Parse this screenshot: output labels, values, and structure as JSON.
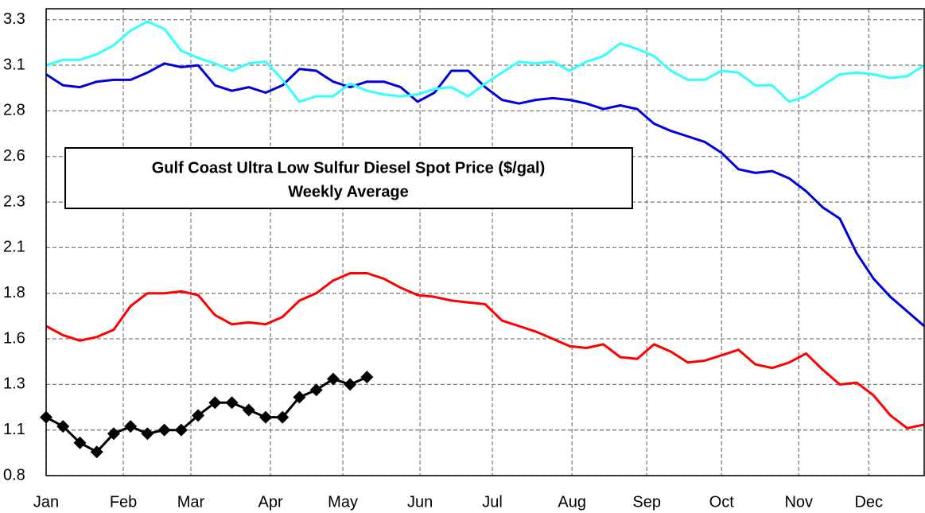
{
  "chart_data": {
    "type": "line",
    "title": "Gulf Coast Ultra Low Sulfur Diesel Spot Price ($/gal)",
    "subtitle": "Weekly Average",
    "x": [
      0,
      7,
      14,
      21,
      28,
      35,
      42,
      49,
      56,
      63,
      70,
      77,
      84,
      91,
      98,
      105,
      112,
      119,
      126,
      133,
      140,
      147,
      154,
      161,
      168,
      175,
      182,
      189,
      196,
      203,
      210,
      217,
      224,
      231,
      238,
      245,
      252,
      259,
      266,
      273,
      280,
      287,
      294,
      301,
      308,
      315,
      322,
      329,
      336,
      343,
      350,
      357,
      364
    ],
    "xlim": [
      0,
      364
    ],
    "xticks": [
      {
        "value": 0,
        "label": "Jan"
      },
      {
        "value": 32,
        "label": "Feb"
      },
      {
        "value": 60,
        "label": "Mar"
      },
      {
        "value": 93,
        "label": "Apr"
      },
      {
        "value": 123,
        "label": "May"
      },
      {
        "value": 155,
        "label": "Jun"
      },
      {
        "value": 185,
        "label": "Jul"
      },
      {
        "value": 218,
        "label": "Aug"
      },
      {
        "value": 249,
        "label": "Sep"
      },
      {
        "value": 280,
        "label": "Oct"
      },
      {
        "value": 312,
        "label": "Nov"
      },
      {
        "value": 341,
        "label": "Dec"
      }
    ],
    "ylim": [
      0.8,
      3.36
    ],
    "yticks": [
      0.8,
      {
        "value": 1.05,
        "label": "1.1"
      },
      1.3,
      {
        "value": 1.55,
        "label": "1.6"
      },
      1.8,
      {
        "value": 2.05,
        "label": "2.1"
      },
      2.3,
      {
        "value": 2.55,
        "label": "2.6"
      },
      2.8,
      {
        "value": 3.05,
        "label": "3.1"
      },
      3.3
    ],
    "grid": true,
    "series": [
      {
        "color": "#ff0000",
        "values": [
          1.62,
          1.57,
          1.54,
          1.56,
          1.6,
          1.73,
          1.8,
          1.8,
          1.81,
          1.79,
          1.68,
          1.63,
          1.64,
          1.63,
          1.67,
          1.76,
          1.8,
          1.87,
          1.91,
          1.91,
          1.88,
          1.83,
          1.79,
          1.78,
          1.76,
          1.75,
          1.74,
          1.65,
          1.62,
          1.59,
          1.55,
          1.51,
          1.5,
          1.52,
          1.45,
          1.44,
          1.52,
          1.48,
          1.42,
          1.43,
          1.46,
          1.49,
          1.41,
          1.39,
          1.42,
          1.47,
          1.38,
          1.3,
          1.31,
          1.24,
          1.13,
          1.06,
          1.08
        ]
      },
      {
        "color": "#0000dd",
        "values": [
          3.0,
          2.94,
          2.93,
          2.96,
          2.97,
          2.97,
          3.01,
          3.06,
          3.04,
          3.05,
          2.94,
          2.91,
          2.93,
          2.9,
          2.94,
          3.03,
          3.02,
          2.96,
          2.93,
          2.96,
          2.96,
          2.93,
          2.85,
          2.9,
          3.02,
          3.02,
          2.93,
          2.86,
          2.84,
          2.86,
          2.87,
          2.86,
          2.84,
          2.81,
          2.83,
          2.81,
          2.73,
          2.69,
          2.66,
          2.63,
          2.57,
          2.48,
          2.46,
          2.47,
          2.43,
          2.36,
          2.27,
          2.21,
          2.02,
          1.88,
          1.78,
          1.7,
          1.62
        ]
      },
      {
        "color": "#33ffff",
        "values": [
          3.05,
          3.08,
          3.08,
          3.11,
          3.16,
          3.24,
          3.29,
          3.25,
          3.13,
          3.09,
          3.06,
          3.02,
          3.06,
          3.07,
          2.97,
          2.85,
          2.88,
          2.88,
          2.95,
          2.91,
          2.89,
          2.88,
          2.89,
          2.92,
          2.93,
          2.88,
          2.95,
          3.01,
          3.07,
          3.06,
          3.07,
          3.02,
          3.07,
          3.1,
          3.17,
          3.14,
          3.1,
          3.02,
          2.97,
          2.97,
          3.02,
          3.01,
          2.94,
          2.94,
          2.85,
          2.88,
          2.94,
          3.0,
          3.01,
          3.0,
          2.98,
          2.99,
          3.05
        ]
      },
      {
        "color": "#000000",
        "marker": "diamond",
        "values": [
          1.12,
          1.07,
          0.98,
          0.93,
          1.03,
          1.07,
          1.03,
          1.05,
          1.05,
          1.13,
          1.2,
          1.2,
          1.16,
          1.12,
          1.12,
          1.23,
          1.27,
          1.33,
          1.3,
          1.34,
          null,
          null,
          null,
          null,
          null,
          null,
          null,
          null,
          null,
          null,
          null,
          null,
          null,
          null,
          null,
          null,
          null,
          null,
          null,
          null,
          null,
          null,
          null,
          null,
          null,
          null,
          null,
          null,
          null,
          null,
          null,
          null,
          null
        ]
      }
    ]
  }
}
